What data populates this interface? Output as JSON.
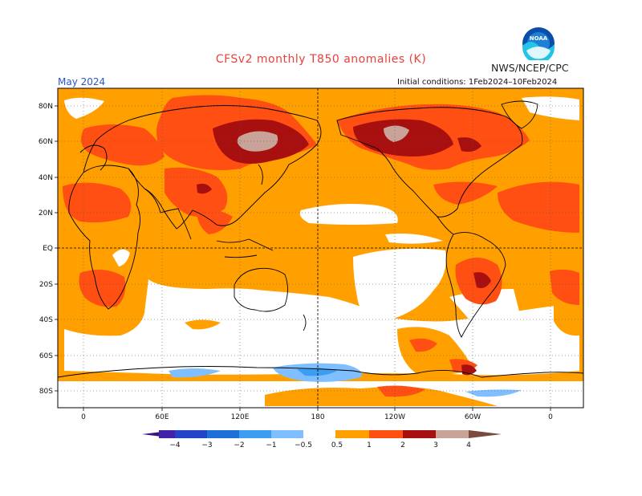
{
  "title": "CFSv2 monthly T850 anomalies (K)",
  "agency": "NWS/NCEP/CPC",
  "valid_month": "May 2024",
  "initial_conditions": "Initial conditions: 1Feb2024–10Feb2024",
  "logo_text": "NOAA",
  "axes": {
    "lat_labels": [
      "80N",
      "60N",
      "40N",
      "20N",
      "EQ",
      "20S",
      "40S",
      "60S",
      "80S"
    ],
    "lon_labels": [
      "0",
      "60E",
      "120E",
      "180",
      "120W",
      "60W",
      "0"
    ]
  },
  "colors": {
    "ocean_pos_05_1": "#ffa000",
    "pos_1_2": "#ff4f12",
    "pos_2_3": "#a80f0f",
    "pos_3_4": "#c9a397",
    "neg_05_1": "#80bfff",
    "neg_1_2": "#3d9df0",
    "neutral": "#ffffff",
    "title": "#e8413c",
    "month": "#2a55c8"
  },
  "colorbar": {
    "tick_labels": [
      "−4",
      "−3",
      "−2",
      "−1",
      "−0.5",
      "0.5",
      "1",
      "2",
      "3",
      "4"
    ],
    "colors": [
      "#4422a8",
      "#2244c8",
      "#1e6fd8",
      "#3d9df0",
      "#80bfff",
      "#ffffff",
      "#ffa000",
      "#ff4f12",
      "#a80f0f",
      "#c9a397"
    ],
    "low_end_color": "#3a1580",
    "high_end_color": "#7a4a3e"
  }
}
